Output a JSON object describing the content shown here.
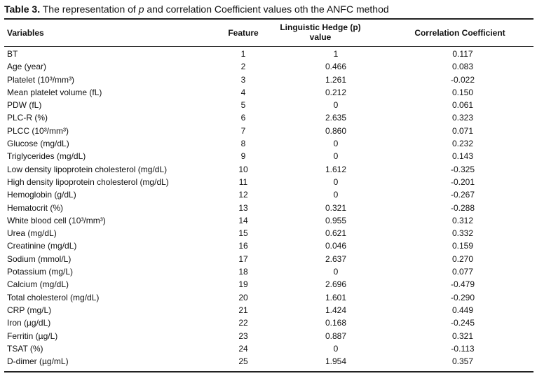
{
  "caption": {
    "label": "Table 3.",
    "text_before_italic": " The representation of ",
    "italic": "p",
    "text_after_italic": " and correlation Coefficient values oth the ANFC method"
  },
  "headers": {
    "variables": "Variables",
    "feature": "Feature",
    "hedge_line1": "Linguistic Hedge (p)",
    "hedge_line2": "value",
    "correlation": "Correlation Coefficient"
  },
  "rows": [
    {
      "variable": "BT",
      "feature": "1",
      "hedge": "1",
      "corr": "0.117"
    },
    {
      "variable": "Age (year)",
      "feature": "2",
      "hedge": "0.466",
      "corr": "0.083"
    },
    {
      "variable": "Platelet (10³/mm³)",
      "feature": "3",
      "hedge": "1.261",
      "corr": "-0.022"
    },
    {
      "variable": "Mean platelet volume (fL)",
      "feature": "4",
      "hedge": "0.212",
      "corr": "0.150"
    },
    {
      "variable": "PDW (fL)",
      "feature": "5",
      "hedge": "0",
      "corr": "0.061"
    },
    {
      "variable": "PLC-R (%)",
      "feature": "6",
      "hedge": "2.635",
      "corr": "0.323"
    },
    {
      "variable": "PLCC (10³/mm³)",
      "feature": "7",
      "hedge": "0.860",
      "corr": "0.071"
    },
    {
      "variable": "Glucose (mg/dL)",
      "feature": "8",
      "hedge": "0",
      "corr": "0.232"
    },
    {
      "variable": "Triglycerides (mg/dL)",
      "feature": "9",
      "hedge": "0",
      "corr": "0.143"
    },
    {
      "variable": "Low density lipoprotein cholesterol (mg/dL)",
      "feature": "10",
      "hedge": "1.612",
      "corr": "-0.325"
    },
    {
      "variable": "High density lipoprotein cholesterol (mg/dL)",
      "feature": "11",
      "hedge": "0",
      "corr": "-0.201"
    },
    {
      "variable": "Hemoglobin (g/dL)",
      "feature": "12",
      "hedge": "0",
      "corr": "-0.267"
    },
    {
      "variable": "Hematocrit (%)",
      "feature": "13",
      "hedge": "0.321",
      "corr": "-0.288"
    },
    {
      "variable": "White blood cell (10³/mm³)",
      "feature": "14",
      "hedge": "0.955",
      "corr": "0.312"
    },
    {
      "variable": "Urea (mg/dL)",
      "feature": "15",
      "hedge": "0.621",
      "corr": "0.332"
    },
    {
      "variable": "Creatinine (mg/dL)",
      "feature": "16",
      "hedge": "0.046",
      "corr": "0.159"
    },
    {
      "variable": "Sodium (mmol/L)",
      "feature": "17",
      "hedge": "2.637",
      "corr": "0.270"
    },
    {
      "variable": "Potassium (mg/L)",
      "feature": "18",
      "hedge": "0",
      "corr": "0.077"
    },
    {
      "variable": "Calcium (mg/dL)",
      "feature": "19",
      "hedge": "2.696",
      "corr": "-0.479"
    },
    {
      "variable": "Total cholesterol (mg/dL)",
      "feature": "20",
      "hedge": "1.601",
      "corr": "-0.290"
    },
    {
      "variable": "CRP (mg/L)",
      "feature": "21",
      "hedge": "1.424",
      "corr": "0.449"
    },
    {
      "variable": "Iron (µg/dL)",
      "feature": "22",
      "hedge": "0.168",
      "corr": "-0.245"
    },
    {
      "variable": "Ferritin (µg/L)",
      "feature": "23",
      "hedge": "0.887",
      "corr": "0.321"
    },
    {
      "variable": "TSAT (%)",
      "feature": "24",
      "hedge": "0",
      "corr": "-0.113"
    },
    {
      "variable": "D-dimer (µg/mL)",
      "feature": "25",
      "hedge": "1.954",
      "corr": "0.357"
    }
  ]
}
